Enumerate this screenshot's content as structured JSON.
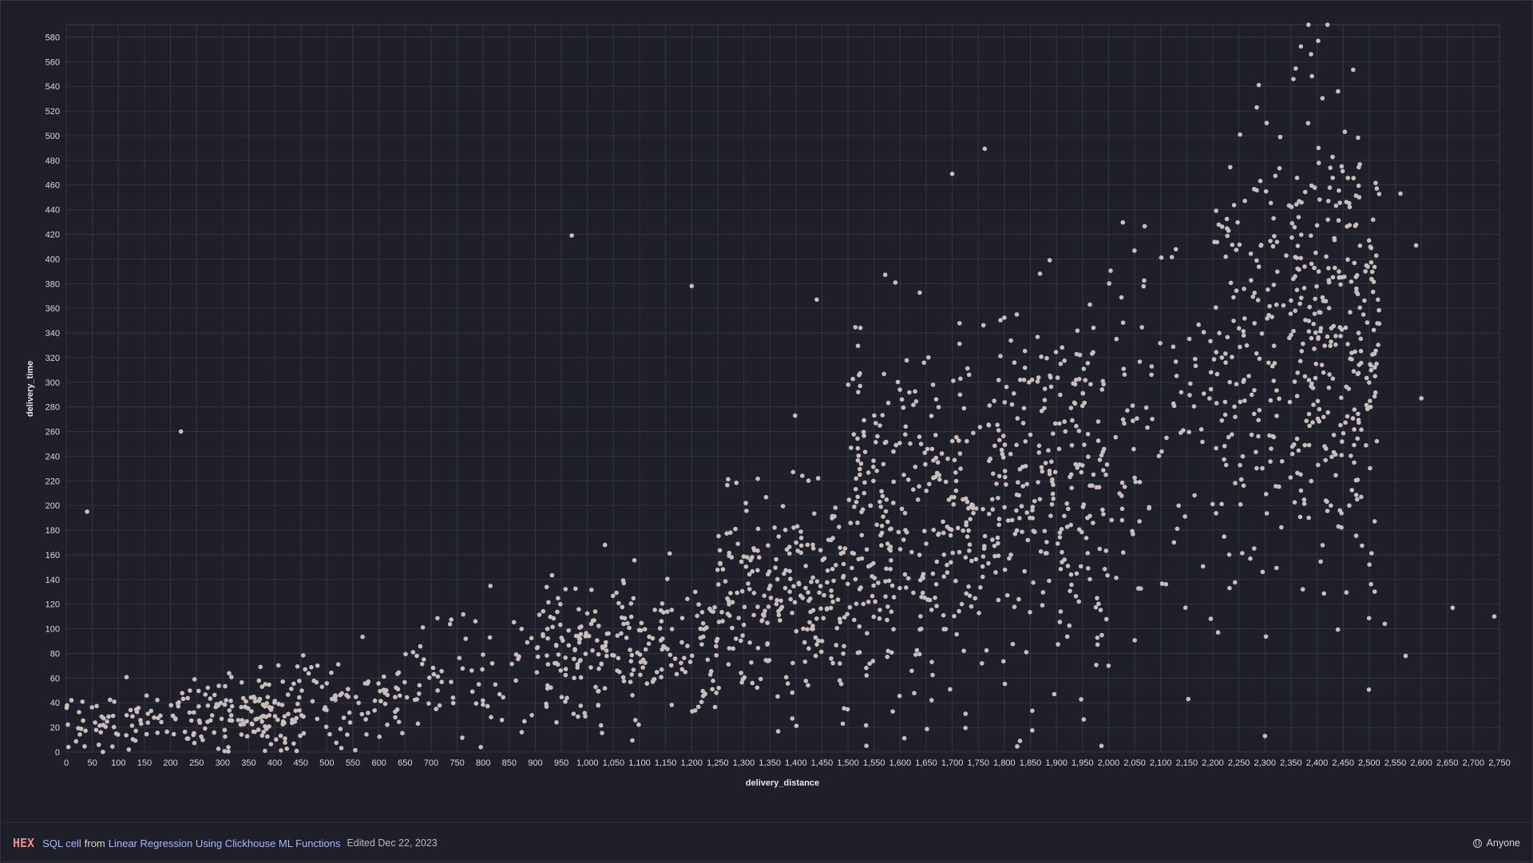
{
  "chart_data": {
    "type": "scatter",
    "xlabel": "delivery_distance",
    "ylabel": "delivery_time",
    "xlim": [
      0,
      2750
    ],
    "ylim": [
      0,
      590
    ],
    "x_ticks": [
      0,
      50,
      100,
      150,
      200,
      250,
      300,
      350,
      400,
      450,
      500,
      550,
      600,
      650,
      700,
      750,
      800,
      850,
      900,
      950,
      1000,
      1050,
      1100,
      1150,
      1200,
      1250,
      1300,
      1350,
      1400,
      1450,
      1500,
      1550,
      1600,
      1650,
      1700,
      1750,
      1800,
      1850,
      1900,
      1950,
      2000,
      2050,
      2100,
      2150,
      2200,
      2250,
      2300,
      2350,
      2400,
      2450,
      2500,
      2550,
      2600,
      2650,
      2700,
      2750
    ],
    "y_ticks": [
      0,
      20,
      40,
      60,
      80,
      100,
      120,
      140,
      160,
      180,
      200,
      220,
      240,
      260,
      280,
      300,
      320,
      340,
      360,
      380,
      400,
      420,
      440,
      460,
      480,
      500,
      520,
      540,
      560,
      580
    ],
    "grid": true,
    "point_color": "#c9beb9",
    "outliers": [
      {
        "x": 40,
        "y": 195
      },
      {
        "x": 220,
        "y": 260
      },
      {
        "x": 970,
        "y": 419
      },
      {
        "x": 1200,
        "y": 378
      },
      {
        "x": 1440,
        "y": 367
      },
      {
        "x": 1700,
        "y": 469
      },
      {
        "x": 2420,
        "y": 590
      },
      {
        "x": 2590,
        "y": 411
      },
      {
        "x": 2600,
        "y": 287
      },
      {
        "x": 2660,
        "y": 117
      },
      {
        "x": 2740,
        "y": 110
      },
      {
        "x": 2560,
        "y": 453
      },
      {
        "x": 2300,
        "y": 13
      },
      {
        "x": 1830,
        "y": 9
      },
      {
        "x": 120,
        "y": 2
      },
      {
        "x": 10,
        "y": 42
      },
      {
        "x": 2530,
        "y": 104
      },
      {
        "x": 2570,
        "y": 78
      },
      {
        "x": 1490,
        "y": 23
      },
      {
        "x": 2210,
        "y": 97
      }
    ],
    "clusters": [
      {
        "x_range": [
          0,
          200
        ],
        "y_mean": 25,
        "y_sd": 12,
        "count": 60
      },
      {
        "x_range": [
          200,
          450
        ],
        "y_mean": 32,
        "y_sd": 16,
        "count": 150
      },
      {
        "x_range": [
          450,
          700
        ],
        "y_mean": 48,
        "y_sd": 22,
        "count": 90
      },
      {
        "x_range": [
          700,
          900
        ],
        "y_mean": 62,
        "y_sd": 26,
        "count": 50
      },
      {
        "x_range": [
          900,
          1250
        ],
        "y_mean": 85,
        "y_sd": 30,
        "count": 230
      },
      {
        "x_range": [
          1250,
          1500
        ],
        "y_mean": 130,
        "y_sd": 45,
        "count": 230
      },
      {
        "x_range": [
          1500,
          1750
        ],
        "y_mean": 185,
        "y_sd": 65,
        "count": 300
      },
      {
        "x_range": [
          1750,
          2000
        ],
        "y_mean": 215,
        "y_sd": 80,
        "count": 280
      },
      {
        "x_range": [
          2000,
          2200
        ],
        "y_mean": 270,
        "y_sd": 85,
        "count": 90
      },
      {
        "x_range": [
          2200,
          2350
        ],
        "y_mean": 330,
        "y_sd": 85,
        "count": 150
      },
      {
        "x_range": [
          2350,
          2520
        ],
        "y_mean": 340,
        "y_sd": 90,
        "count": 300
      }
    ]
  },
  "footer": {
    "logo": "HEX",
    "cell_type": "SQL cell",
    "from_text": "from",
    "project_name": "Linear Regression Using Clickhouse ML Functions",
    "edited": "Edited Dec 22, 2023",
    "visibility": "Anyone"
  }
}
